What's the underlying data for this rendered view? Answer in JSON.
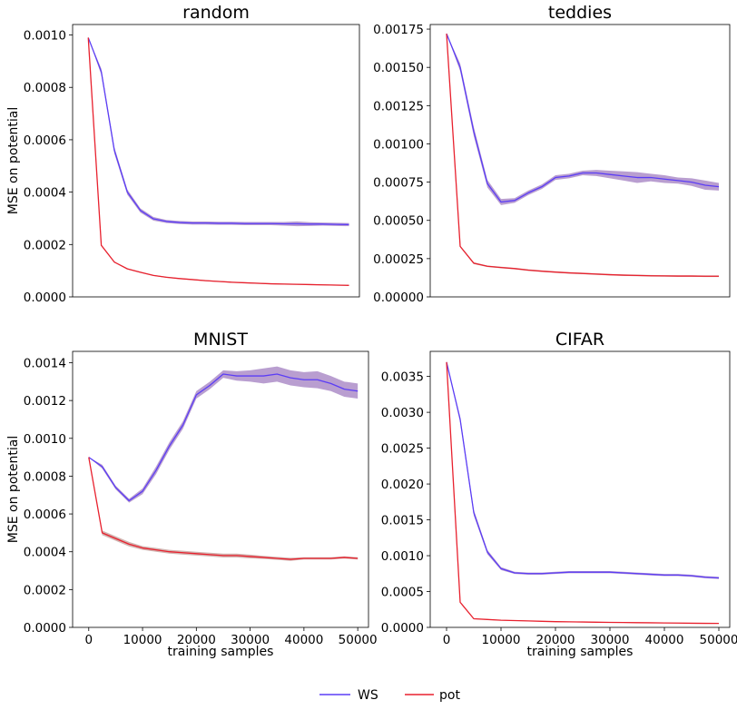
{
  "figure": {
    "legend": [
      {
        "name": "WS",
        "color": "#5b3df5"
      },
      {
        "name": "pot",
        "color": "#e8212e"
      }
    ]
  },
  "chart_data": [
    {
      "type": "line",
      "title": "random",
      "xlabel": "",
      "ylabel": "MSE on potential",
      "xlim": [
        -3000,
        52000
      ],
      "ylim": [
        0,
        0.00104
      ],
      "xticks": [],
      "yticks": [
        0,
        0.0002,
        0.0004,
        0.0006,
        0.0008,
        0.001
      ],
      "ytick_labels": [
        "0.0000",
        "0.0002",
        "0.0004",
        "0.0006",
        "0.0008",
        "0.0010"
      ],
      "x": [
        0,
        2500,
        5000,
        7500,
        10000,
        12500,
        15000,
        17500,
        20000,
        22500,
        25000,
        27500,
        30000,
        32500,
        35000,
        37500,
        40000,
        42500,
        45000,
        47500,
        50000
      ],
      "series": [
        {
          "name": "WS",
          "color": "#5b3df5",
          "band": "#a27ec0",
          "values": [
            0.00099,
            0.00086,
            0.00056,
            0.0004,
            0.00033,
            0.000298,
            0.000288,
            0.000284,
            0.000282,
            0.000282,
            0.000281,
            0.000281,
            0.00028,
            0.00028,
            0.00028,
            0.000279,
            0.000279,
            0.000278,
            0.000278,
            0.000277,
            0.000276
          ],
          "spread": [
            0,
            1.2e-05,
            1.2e-05,
            1e-05,
            8e-06,
            7e-06,
            6e-06,
            6e-06,
            6e-06,
            6e-06,
            6e-06,
            6e-06,
            6e-06,
            6e-06,
            6e-06,
            7e-06,
            9e-06,
            7e-06,
            6e-06,
            6e-06,
            6e-06
          ]
        },
        {
          "name": "pot",
          "color": "#e8212e",
          "band": "#c29a96",
          "values": [
            0.00099,
            0.000197,
            0.000133,
            0.000107,
            9.4e-05,
            8.2e-05,
            7.5e-05,
            7e-05,
            6.6e-05,
            6.2e-05,
            5.9e-05,
            5.6e-05,
            5.4e-05,
            5.2e-05,
            5e-05,
            4.9e-05,
            4.8e-05,
            4.7e-05,
            4.6e-05,
            4.5e-05,
            4.4e-05
          ],
          "spread": [
            0,
            2e-06,
            2e-06,
            2e-06,
            2e-06,
            2e-06,
            2e-06,
            2e-06,
            2e-06,
            2e-06,
            2e-06,
            2e-06,
            2e-06,
            2e-06,
            2e-06,
            2e-06,
            2e-06,
            2e-06,
            2e-06,
            2e-06,
            2e-06
          ]
        }
      ]
    },
    {
      "type": "line",
      "title": "teddies",
      "xlabel": "",
      "ylabel": "",
      "xlim": [
        -3000,
        52000
      ],
      "ylim": [
        0,
        0.00178
      ],
      "xticks": [],
      "yticks": [
        0,
        0.00025,
        0.0005,
        0.00075,
        0.001,
        0.00125,
        0.0015,
        0.00175
      ],
      "ytick_labels": [
        "0.00000",
        "0.00025",
        "0.00050",
        "0.00075",
        "0.00100",
        "0.00125",
        "0.00150",
        "0.00175"
      ],
      "x": [
        0,
        2500,
        5000,
        7500,
        10000,
        12500,
        15000,
        17500,
        20000,
        22500,
        25000,
        27500,
        30000,
        32500,
        35000,
        37500,
        40000,
        42500,
        45000,
        47500,
        50000
      ],
      "series": [
        {
          "name": "WS",
          "color": "#5b3df5",
          "band": "#a27ec0",
          "values": [
            0.00172,
            0.0015,
            0.00108,
            0.00074,
            0.00062,
            0.00063,
            0.00068,
            0.00072,
            0.00078,
            0.00079,
            0.00081,
            0.00081,
            0.0008,
            0.00079,
            0.00078,
            0.00078,
            0.00077,
            0.00076,
            0.00075,
            0.00073,
            0.00072
          ],
          "spread": [
            0,
            2.5e-05,
            3e-05,
            2.5e-05,
            2e-05,
            1.5e-05,
            1.5e-05,
            1.5e-05,
            1.5e-05,
            1.5e-05,
            1.5e-05,
            2e-05,
            2.5e-05,
            3e-05,
            3.5e-05,
            2.5e-05,
            2.5e-05,
            2e-05,
            2.5e-05,
            3e-05,
            2.5e-05
          ]
        },
        {
          "name": "pot",
          "color": "#e8212e",
          "band": "#c29a96",
          "values": [
            0.00172,
            0.00033,
            0.00022,
            0.0002,
            0.000192,
            0.000185,
            0.000175,
            0.000168,
            0.000162,
            0.000157,
            0.000153,
            0.000149,
            0.000145,
            0.000142,
            0.00014,
            0.000138,
            0.000137,
            0.000136,
            0.000136,
            0.000135,
            0.000135
          ],
          "spread": [
            0,
            6e-06,
            6e-06,
            5e-06,
            5e-06,
            5e-06,
            5e-06,
            5e-06,
            5e-06,
            5e-06,
            5e-06,
            5e-06,
            5e-06,
            5e-06,
            5e-06,
            5e-06,
            5e-06,
            5e-06,
            5e-06,
            5e-06,
            5e-06
          ]
        }
      ]
    },
    {
      "type": "line",
      "title": "MNIST",
      "xlabel": "training samples",
      "ylabel": "MSE on potential",
      "xlim": [
        -3000,
        52000
      ],
      "ylim": [
        0,
        0.00146
      ],
      "xticks": [
        0,
        10000,
        20000,
        30000,
        40000,
        50000
      ],
      "xtick_labels": [
        "0",
        "10000",
        "20000",
        "30000",
        "40000",
        "50000"
      ],
      "yticks": [
        0,
        0.0002,
        0.0004,
        0.0006,
        0.0008,
        0.001,
        0.0012,
        0.0014
      ],
      "ytick_labels": [
        "0.0000",
        "0.0002",
        "0.0004",
        "0.0006",
        "0.0008",
        "0.0010",
        "0.0012",
        "0.0014"
      ],
      "x": [
        0,
        2500,
        5000,
        7500,
        10000,
        12500,
        15000,
        17500,
        20000,
        22500,
        25000,
        27500,
        30000,
        32500,
        35000,
        37500,
        40000,
        42500,
        45000,
        47500,
        50000
      ],
      "series": [
        {
          "name": "WS",
          "color": "#5b3df5",
          "band": "#a27ec0",
          "values": [
            0.0009,
            0.00085,
            0.00074,
            0.00067,
            0.00072,
            0.00083,
            0.00096,
            0.00107,
            0.00123,
            0.00128,
            0.00134,
            0.00133,
            0.00133,
            0.00133,
            0.00134,
            0.00132,
            0.00131,
            0.00131,
            0.00129,
            0.00126,
            0.00125
          ],
          "spread": [
            0,
            1e-05,
            1e-05,
            1e-05,
            1.5e-05,
            2e-05,
            2e-05,
            2e-05,
            2e-05,
            2e-05,
            2e-05,
            2.5e-05,
            3e-05,
            4e-05,
            4e-05,
            4e-05,
            4e-05,
            4.5e-05,
            4e-05,
            4e-05,
            4e-05
          ]
        },
        {
          "name": "pot",
          "color": "#e8212e",
          "band": "#c29a96",
          "values": [
            0.0009,
            0.0005,
            0.00047,
            0.00044,
            0.00042,
            0.00041,
            0.0004,
            0.000395,
            0.00039,
            0.000385,
            0.00038,
            0.00038,
            0.000375,
            0.00037,
            0.000365,
            0.00036,
            0.000365,
            0.000365,
            0.000365,
            0.00037,
            0.000365
          ],
          "spread": [
            0,
            1.2e-05,
            1.2e-05,
            1.2e-05,
            1e-05,
            1e-05,
            1e-05,
            1e-05,
            1e-05,
            1e-05,
            1e-05,
            1e-05,
            1e-05,
            8e-06,
            8e-06,
            8e-06,
            6e-06,
            6e-06,
            6e-06,
            6e-06,
            6e-06
          ]
        }
      ]
    },
    {
      "type": "line",
      "title": "CIFAR",
      "xlabel": "training samples",
      "ylabel": "",
      "xlim": [
        -3000,
        52000
      ],
      "ylim": [
        0,
        0.00385
      ],
      "xticks": [
        0,
        10000,
        20000,
        30000,
        40000,
        50000
      ],
      "xtick_labels": [
        "0",
        "10000",
        "20000",
        "30000",
        "40000",
        "50000"
      ],
      "yticks": [
        0,
        0.0005,
        0.001,
        0.0015,
        0.002,
        0.0025,
        0.003,
        0.0035
      ],
      "ytick_labels": [
        "0.0000",
        "0.0005",
        "0.0010",
        "0.0015",
        "0.0020",
        "0.0025",
        "0.0030",
        "0.0035"
      ],
      "x": [
        0,
        2500,
        5000,
        7500,
        10000,
        12500,
        15000,
        17500,
        20000,
        22500,
        25000,
        27500,
        30000,
        32500,
        35000,
        37500,
        40000,
        42500,
        45000,
        47500,
        50000
      ],
      "series": [
        {
          "name": "WS",
          "color": "#5b3df5",
          "band": "#a27ec0",
          "values": [
            0.0037,
            0.0029,
            0.0016,
            0.00105,
            0.00082,
            0.00076,
            0.00075,
            0.00075,
            0.00076,
            0.00077,
            0.00077,
            0.00077,
            0.00077,
            0.00076,
            0.00075,
            0.00074,
            0.00073,
            0.00073,
            0.00072,
            0.0007,
            0.00069
          ],
          "spread": [
            0,
            4e-05,
            4e-05,
            3e-05,
            2e-05,
            1.5e-05,
            1.5e-05,
            1.5e-05,
            1.5e-05,
            1.5e-05,
            1.5e-05,
            1.5e-05,
            1.5e-05,
            1.5e-05,
            1.5e-05,
            1.5e-05,
            1.5e-05,
            1.5e-05,
            1.5e-05,
            1.5e-05,
            1.5e-05
          ]
        },
        {
          "name": "pot",
          "color": "#e8212e",
          "band": "#c29a96",
          "values": [
            0.0037,
            0.00035,
            0.00012,
            0.00011,
            0.0001,
            9.5e-05,
            9e-05,
            8.5e-05,
            8e-05,
            7.8e-05,
            7.5e-05,
            7.2e-05,
            7e-05,
            6.8e-05,
            6.6e-05,
            6.4e-05,
            6.2e-05,
            6e-05,
            5.8e-05,
            5.6e-05,
            5.5e-05
          ],
          "spread": [
            0,
            5e-06,
            5e-06,
            5e-06,
            5e-06,
            5e-06,
            5e-06,
            5e-06,
            5e-06,
            5e-06,
            5e-06,
            5e-06,
            5e-06,
            5e-06,
            5e-06,
            5e-06,
            5e-06,
            5e-06,
            5e-06,
            5e-06,
            5e-06
          ]
        }
      ]
    }
  ]
}
